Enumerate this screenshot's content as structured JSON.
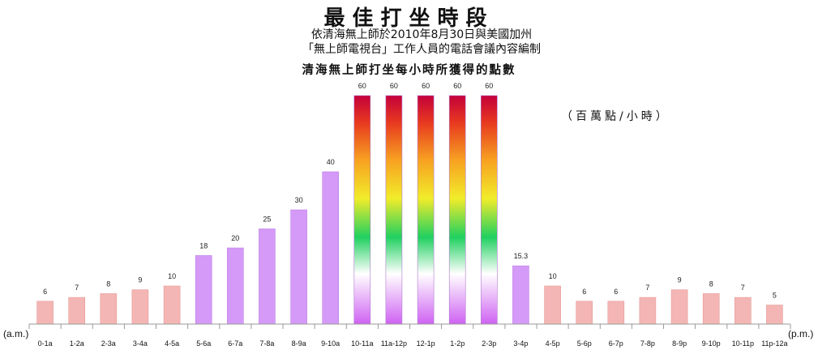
{
  "title": "最佳打坐時段",
  "subtitle_line1": "依清海無上師於2010年8月30日與美國加州",
  "subtitle_line2": "「無上師電視台」工作人員的電話會議內容編制",
  "chart_heading": "清海無上師打坐每小時所獲得的點數",
  "unit": "（百萬點/小時）",
  "am_label": "(a.m.)",
  "pm_label": "(p.m.)",
  "colors": {
    "pink": "#f4b6b4",
    "pink_stroke": "#e49a98",
    "violet": "#d59af7",
    "violet_stroke": "#bf7fe6",
    "rainbow_top": "#c4003a",
    "rainbow_mid": "#f2ec2a",
    "rainbow_green": "#20d060",
    "rainbow_white": "#ffffff",
    "rainbow_bottom": "#cf62f2"
  },
  "chart_data": {
    "type": "bar",
    "title": "清海無上師打坐每小時所獲得的點數",
    "ylabel": "（百萬點/小時）",
    "categories": [
      "0-1a",
      "1-2a",
      "2-3a",
      "3-4a",
      "4-5a",
      "5-6a",
      "6-7a",
      "7-8a",
      "8-9a",
      "9-10a",
      "10-11a",
      "11a-12p",
      "12-1p",
      "1-2p",
      "2-3p",
      "3-4p",
      "4-5p",
      "5-6p",
      "6-7p",
      "7-8p",
      "8-9p",
      "9-10p",
      "10-11p",
      "11p-12a"
    ],
    "values": [
      6,
      7,
      8,
      9,
      10,
      18,
      20,
      25,
      30,
      40,
      60,
      60,
      60,
      60,
      60,
      15.3,
      10,
      6,
      6,
      7,
      9,
      8,
      7,
      5
    ],
    "value_labels": [
      "6",
      "7",
      "8",
      "9",
      "10",
      "18",
      "20",
      "25",
      "30",
      "40",
      "60",
      "60",
      "60",
      "60",
      "60",
      "15.3",
      "10",
      "6",
      "6",
      "7",
      "9",
      "8",
      "7",
      "5"
    ],
    "bar_styles": [
      "pink",
      "pink",
      "pink",
      "pink",
      "pink",
      "violet",
      "violet",
      "violet",
      "violet",
      "violet",
      "rainbow",
      "rainbow",
      "rainbow",
      "rainbow",
      "rainbow",
      "violet",
      "pink",
      "pink",
      "pink",
      "pink",
      "pink",
      "pink",
      "pink",
      "pink"
    ],
    "ylim": [
      0,
      60
    ],
    "grid": false
  }
}
